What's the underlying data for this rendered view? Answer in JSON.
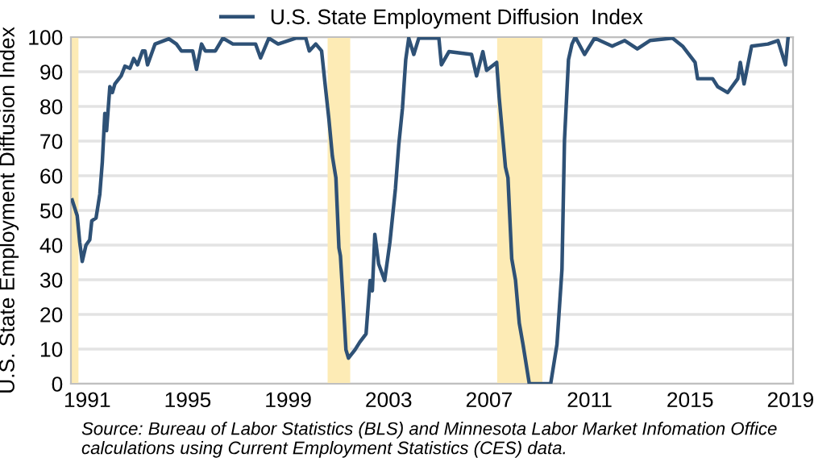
{
  "chart_data": {
    "type": "line",
    "ylabel": "U.S. State Employment Diffusion Index",
    "x": [
      1990.4,
      1990.6,
      1990.7,
      1990.8,
      1990.95,
      1991.1,
      1991.18,
      1991.35,
      1991.5,
      1991.6,
      1991.7,
      1991.77,
      1991.9,
      1992.0,
      1992.1,
      1992.35,
      1992.5,
      1992.7,
      1992.85,
      1993.0,
      1993.2,
      1993.3,
      1993.4,
      1993.7,
      1994.25,
      1994.55,
      1994.75,
      1995.2,
      1995.35,
      1995.55,
      1995.7,
      1996.1,
      1996.4,
      1996.8,
      1997.7,
      1997.9,
      1998.23,
      1998.6,
      1999.3,
      1999.7,
      1999.84,
      2000.1,
      2000.33,
      2000.48,
      2000.62,
      2000.76,
      2000.9,
      2001.02,
      2001.08,
      2001.19,
      2001.3,
      2001.4,
      2001.66,
      2001.85,
      2002.1,
      2002.26,
      2002.35,
      2002.45,
      2002.6,
      2002.84,
      2003.05,
      2003.27,
      2003.4,
      2003.55,
      2003.68,
      2003.8,
      2004.0,
      2004.2,
      2005.0,
      2005.1,
      2005.4,
      2006.3,
      2006.5,
      2006.75,
      2006.9,
      2007.3,
      2007.4,
      2007.65,
      2007.75,
      2007.9,
      2008.05,
      2008.2,
      2008.35,
      2008.6,
      2009.45,
      2009.7,
      2009.9,
      2010.0,
      2010.16,
      2010.3,
      2010.43,
      2010.8,
      2011.2,
      2011.9,
      2012.4,
      2012.9,
      2013.4,
      2014.3,
      2014.7,
      2015.2,
      2015.3,
      2015.9,
      2016.1,
      2016.5,
      2016.9,
      2017.0,
      2017.15,
      2017.45,
      2018.1,
      2018.5,
      2018.8,
      2018.9
    ],
    "series": [
      {
        "name": "U.S. State Employment Diffusion  Index",
        "color": "#2e5176",
        "values": [
          53,
          48.5,
          40.8,
          35.3,
          40,
          41.5,
          47,
          47.8,
          54.7,
          64,
          78,
          73,
          85.7,
          84,
          86.5,
          88.8,
          91.6,
          91,
          93.8,
          92,
          96,
          96,
          92,
          98,
          99.5,
          98,
          96,
          96,
          90.7,
          98,
          96,
          96,
          99.7,
          98,
          98,
          94,
          99.7,
          98,
          99.7,
          99.7,
          96,
          98,
          96,
          85.7,
          76.4,
          65.6,
          59.4,
          39.2,
          36.9,
          23.7,
          9.8,
          7.4,
          9.8,
          12,
          14.4,
          29.8,
          26.8,
          43.1,
          34.6,
          29.8,
          40.8,
          56.3,
          68.7,
          79.5,
          93.5,
          99.7,
          95,
          99.7,
          99.7,
          92,
          95.8,
          95,
          88.8,
          95.8,
          90.4,
          92.7,
          82.6,
          62.5,
          59.4,
          36.1,
          29.9,
          17.5,
          11.3,
          0,
          0,
          11.3,
          33,
          70.2,
          93.5,
          98,
          100,
          95,
          99.7,
          97.4,
          99,
          96.6,
          99,
          99.7,
          97.4,
          92.7,
          88,
          88,
          85.7,
          84,
          88,
          92.7,
          86.5,
          97.4,
          98,
          99,
          92,
          99.7
        ]
      }
    ],
    "xlim": [
      1990.35,
      2019.1
    ],
    "xticks": [
      1991,
      1995,
      1999,
      2003,
      2007,
      2011,
      2015,
      2019
    ],
    "ylim": [
      0,
      100
    ],
    "yticks": [
      0,
      10,
      20,
      30,
      40,
      50,
      60,
      70,
      80,
      90,
      100
    ],
    "bands": [
      {
        "axis": "x",
        "from": 1990.35,
        "to": 1990.65,
        "color": "#fdebb5"
      },
      {
        "axis": "x",
        "from": 2000.57,
        "to": 2001.47,
        "color": "#fdebb5"
      },
      {
        "axis": "x",
        "from": 2007.32,
        "to": 2009.12,
        "color": "#fdebb5"
      }
    ],
    "grid": "y",
    "legend": "top",
    "annotations": [
      "Source: Bureau of Labor Statistics (BLS) and Minnesota Labor Market Infomation Office calculations using Current Employment Statistics (CES) data."
    ]
  }
}
